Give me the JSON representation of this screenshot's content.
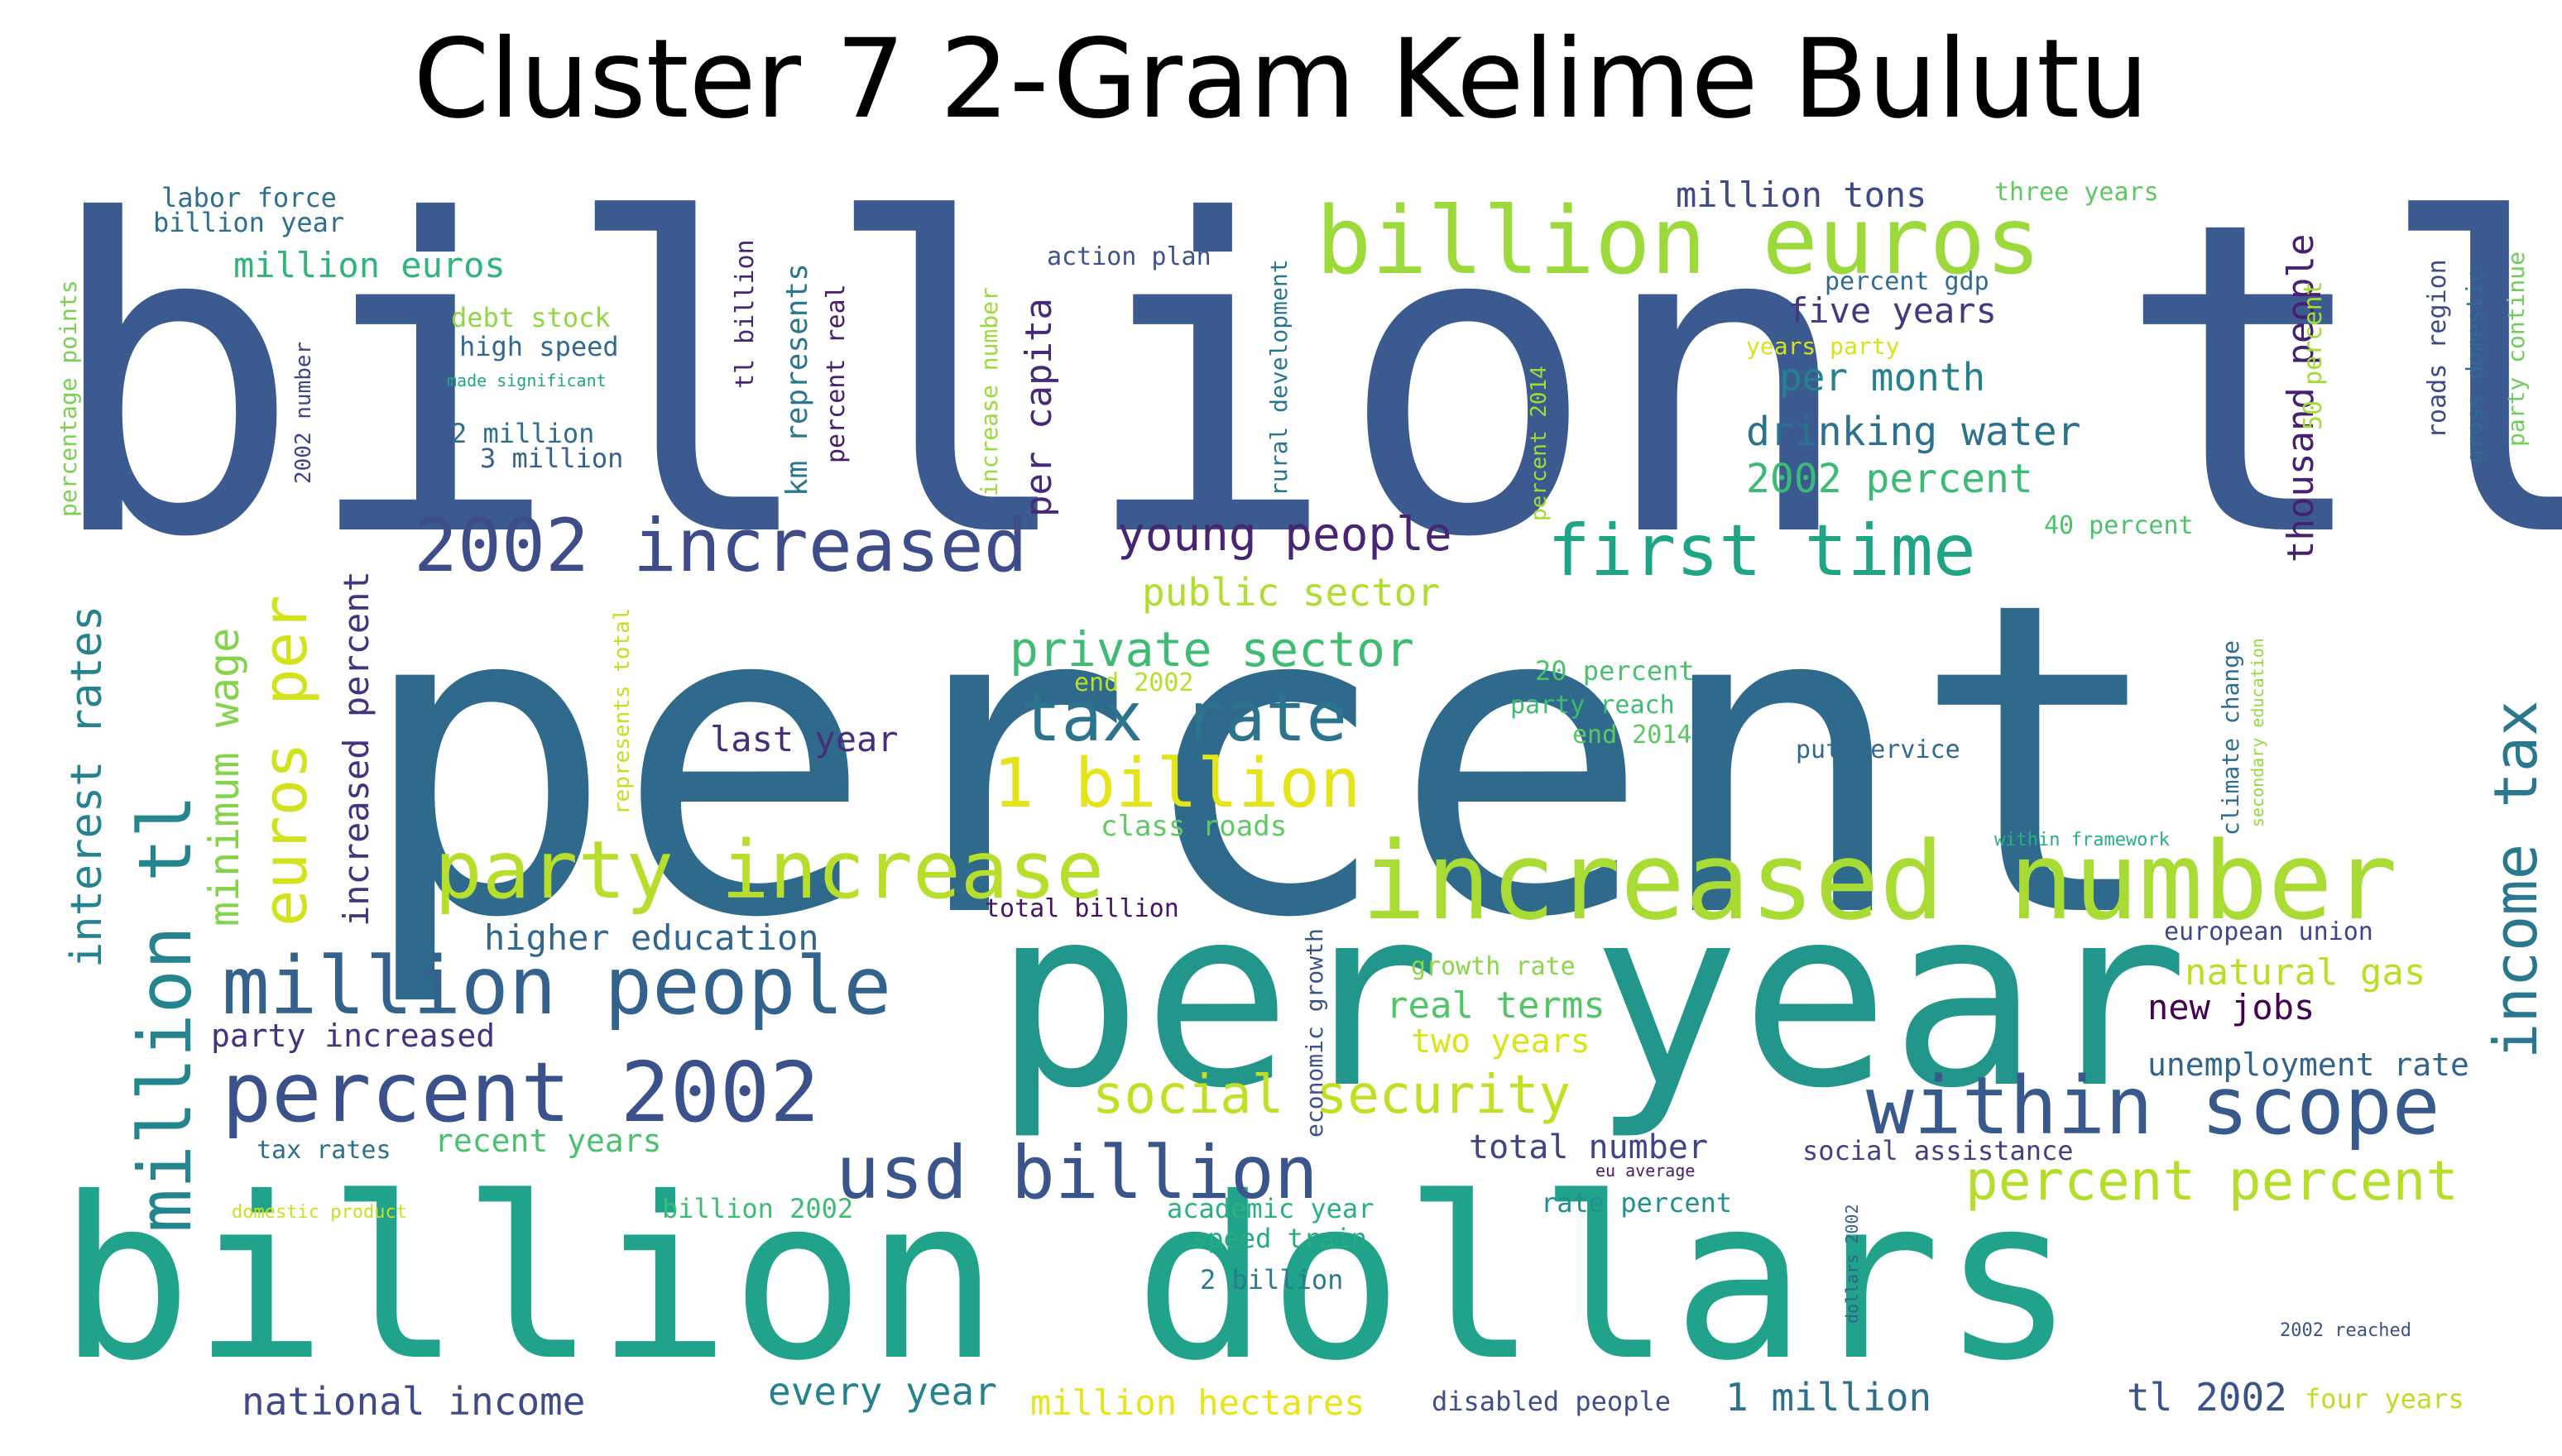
{
  "chart_data": {
    "type": "wordcloud",
    "title": "Cluster 7 2-Gram Kelime Bulutu",
    "palette": "viridis",
    "words": [
      {
        "text": "billion tl",
        "color": "#3b5a8f"
      },
      {
        "text": "percent",
        "color": "#2f6a8d"
      },
      {
        "text": "per year",
        "color": "#22968b"
      },
      {
        "text": "billion dollars",
        "color": "#21a38b"
      },
      {
        "text": "increased number",
        "color": "#a8db34"
      },
      {
        "text": "billion euros",
        "color": "#9cd93b"
      },
      {
        "text": "party increase",
        "color": "#b6de2b"
      },
      {
        "text": "2002 increased",
        "color": "#3e4c8a"
      },
      {
        "text": "million tl",
        "color": "#25858e"
      },
      {
        "text": "first time",
        "color": "#20a486"
      },
      {
        "text": "percent 2002",
        "color": "#3b518b"
      },
      {
        "text": "million people",
        "color": "#33638d"
      },
      {
        "text": "within scope",
        "color": "#38598c"
      },
      {
        "text": "usd billion",
        "color": "#39558c"
      },
      {
        "text": "tax rate",
        "color": "#2c738e"
      },
      {
        "text": "1 billion",
        "color": "#e5e419"
      },
      {
        "text": "income tax",
        "color": "#2a788e"
      },
      {
        "text": "euros per",
        "color": "#d2e21b"
      },
      {
        "text": "percent percent",
        "color": "#b5de2b"
      },
      {
        "text": "young people",
        "color": "#482475"
      },
      {
        "text": "social security",
        "color": "#c2df23"
      },
      {
        "text": "private sector",
        "color": "#3fbc73"
      },
      {
        "text": "minimum wage",
        "color": "#84d44b"
      },
      {
        "text": "interest rates",
        "color": "#26828e"
      },
      {
        "text": "drinking water",
        "color": "#2c718e"
      },
      {
        "text": "2002 percent",
        "color": "#3bbb75"
      },
      {
        "text": "increased percent",
        "color": "#46337e"
      },
      {
        "text": "public sector",
        "color": "#b0dd2f"
      },
      {
        "text": "per month",
        "color": "#26818e"
      },
      {
        "text": "million euros",
        "color": "#2fb47c"
      },
      {
        "text": "five years",
        "color": "#453882"
      },
      {
        "text": "million tons",
        "color": "#3e4989"
      },
      {
        "text": "thousand people",
        "color": "#482071"
      },
      {
        "text": "per capita",
        "color": "#482878"
      },
      {
        "text": "last year",
        "color": "#472d7b"
      },
      {
        "text": "higher education",
        "color": "#31668e"
      },
      {
        "text": "party increased",
        "color": "#46327e"
      },
      {
        "text": "natural gas",
        "color": "#bade28"
      },
      {
        "text": "real terms",
        "color": "#52c569"
      },
      {
        "text": "two years",
        "color": "#dde318"
      },
      {
        "text": "new jobs",
        "color": "#440154"
      },
      {
        "text": "unemployment rate",
        "color": "#33638d"
      },
      {
        "text": "recent years",
        "color": "#4ac16d"
      },
      {
        "text": "total number",
        "color": "#414487"
      },
      {
        "text": "national income",
        "color": "#3e4a89"
      },
      {
        "text": "every year",
        "color": "#26828e"
      },
      {
        "text": "million hectares",
        "color": "#e7e419"
      },
      {
        "text": "1 million",
        "color": "#2d708e"
      },
      {
        "text": "tl 2002",
        "color": "#3a538b"
      },
      {
        "text": "km represents",
        "color": "#2a788e"
      },
      {
        "text": "class roads",
        "color": "#5ec962"
      },
      {
        "text": "end 2002",
        "color": "#b8de29"
      },
      {
        "text": "20 percent",
        "color": "#4ac16d"
      },
      {
        "text": "party reach",
        "color": "#3dbc74"
      },
      {
        "text": "end 2014",
        "color": "#5cc863"
      },
      {
        "text": "put service",
        "color": "#31688e"
      },
      {
        "text": "within framework",
        "color": "#29af7f"
      },
      {
        "text": "climate change",
        "color": "#2f6c8e"
      },
      {
        "text": "secondary education",
        "color": "#95d840"
      },
      {
        "text": "european union",
        "color": "#3f4788"
      },
      {
        "text": "growth rate",
        "color": "#8bd646"
      },
      {
        "text": "total billion",
        "color": "#471365"
      },
      {
        "text": "economic growth",
        "color": "#3b528b"
      },
      {
        "text": "tax rates",
        "color": "#2e6f8e"
      },
      {
        "text": "domestic product",
        "color": "#c8e020"
      },
      {
        "text": "billion 2002",
        "color": "#3dbc74"
      },
      {
        "text": "academic year",
        "color": "#2cb17e"
      },
      {
        "text": "speed train",
        "color": "#25ab82"
      },
      {
        "text": "2 billion",
        "color": "#287c8e"
      },
      {
        "text": "rate percent",
        "color": "#21908d"
      },
      {
        "text": "eu average",
        "color": "#481c6e"
      },
      {
        "text": "social assistance",
        "color": "#423f85"
      },
      {
        "text": "disabled people",
        "color": "#3d4e8a"
      },
      {
        "text": "four years",
        "color": "#bade28"
      },
      {
        "text": "2002 reached",
        "color": "#3b528b"
      },
      {
        "text": "dollars 2002",
        "color": "#355f8d"
      },
      {
        "text": "labor force",
        "color": "#2d708e"
      },
      {
        "text": "billion year",
        "color": "#2e6e8e"
      },
      {
        "text": "debt stock",
        "color": "#8fd744"
      },
      {
        "text": "high speed",
        "color": "#31688e"
      },
      {
        "text": "made significant",
        "color": "#21a685"
      },
      {
        "text": "2 million",
        "color": "#2e6e8e"
      },
      {
        "text": "3 million",
        "color": "#34618d"
      },
      {
        "text": "2002 number",
        "color": "#414487"
      },
      {
        "text": "percentage points",
        "color": "#7ad151"
      },
      {
        "text": "tl billion",
        "color": "#482576"
      },
      {
        "text": "percent real",
        "color": "#481b6d"
      },
      {
        "text": "increase number",
        "color": "#9bd93c"
      },
      {
        "text": "action plan",
        "color": "#3b528b"
      },
      {
        "text": "rural development",
        "color": "#2a768e"
      },
      {
        "text": "percent 2014",
        "color": "#a2da37"
      },
      {
        "text": "percent gdp",
        "color": "#2f6b8e"
      },
      {
        "text": "years party",
        "color": "#d8e219"
      },
      {
        "text": "three years",
        "color": "#5ec962"
      },
      {
        "text": "50 percent",
        "color": "#a5db36"
      },
      {
        "text": "40 percent",
        "color": "#4cc26c"
      },
      {
        "text": "roads region",
        "color": "#3e4989"
      },
      {
        "text": "gross domestic",
        "color": "#2f6b8e"
      },
      {
        "text": "party continue",
        "color": "#6ece58"
      },
      {
        "text": "represents total",
        "color": "#c0df25"
      }
    ]
  }
}
